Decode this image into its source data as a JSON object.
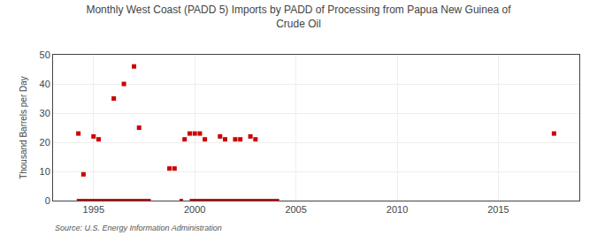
{
  "chart_data": {
    "type": "scatter",
    "title": "Monthly West Coast (PADD 5) Imports by PADD of Processing from Papua New Guinea of\nCrude Oil",
    "ylabel": "Thousand Barrels per Day",
    "annotations": [
      "Source: U.S. Energy Information Administration"
    ],
    "xlim": [
      1993.0,
      2019.0
    ],
    "xticks": [
      1995,
      2000,
      2005,
      2010,
      2015
    ],
    "ylim": [
      0,
      50
    ],
    "yticks": [
      0,
      10,
      20,
      30,
      40,
      50
    ],
    "grid": true,
    "series": [
      {
        "type": "scatter",
        "color": "#cc0000",
        "marker": "square",
        "x": [
          1994.25,
          1994.5,
          1995.0,
          1995.25,
          1996.0,
          1996.5,
          1997.0,
          1997.25,
          1998.75,
          1999.0,
          1999.5,
          1999.75,
          2000.0,
          2000.25,
          2000.5,
          2001.25,
          2001.5,
          2002.0,
          2002.25,
          2002.75,
          2003.0,
          2017.75
        ],
        "values": [
          23,
          9,
          22,
          21,
          35,
          40,
          46,
          25,
          11,
          11,
          21,
          23,
          23,
          23,
          21,
          22,
          21,
          21,
          21,
          22,
          21,
          23
        ]
      },
      {
        "type": "line",
        "color": "#cc0000",
        "line_style": "solid",
        "x": [
          1994.17,
          1997.83,
          null,
          1999.25,
          1999.42,
          null,
          1999.75,
          2004.17
        ],
        "values": [
          0,
          0,
          null,
          0,
          0,
          null,
          0,
          0
        ]
      }
    ]
  }
}
